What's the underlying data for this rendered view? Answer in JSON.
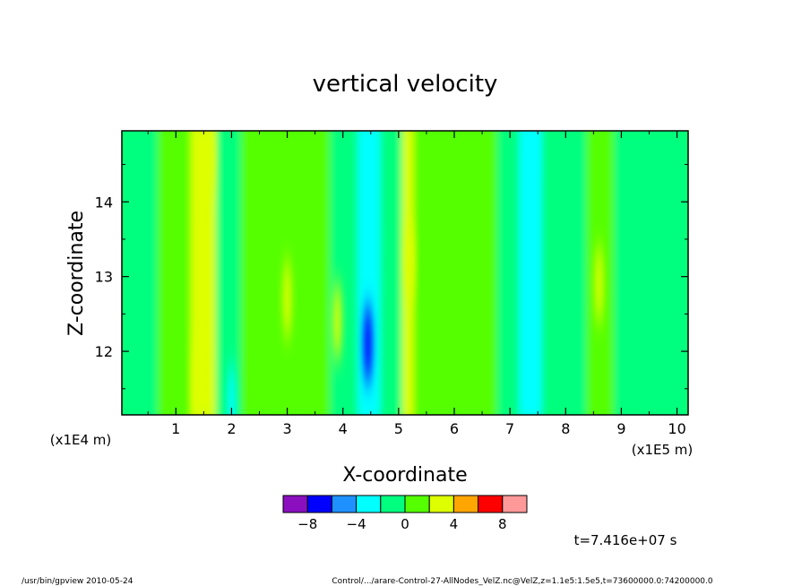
{
  "chart_data": {
    "type": "heatmap",
    "title": "vertical velocity",
    "xlabel": "X-coordinate",
    "ylabel": "Z-coordinate",
    "x_unit_left": "(x1E4 m)",
    "x_unit_right": "(x1E5 m)",
    "x_ticks": [
      {
        "label": "1",
        "value": 1
      },
      {
        "label": "2",
        "value": 2
      },
      {
        "label": "3",
        "value": 3
      },
      {
        "label": "4",
        "value": 4
      },
      {
        "label": "5",
        "value": 5
      },
      {
        "label": "6",
        "value": 6
      },
      {
        "label": "7",
        "value": 7
      },
      {
        "label": "8",
        "value": 8
      },
      {
        "label": "9",
        "value": 9
      },
      {
        "label": "10",
        "value": 10
      }
    ],
    "y_ticks": [
      {
        "label": "12",
        "value": 12
      },
      {
        "label": "13",
        "value": 13
      },
      {
        "label": "14",
        "value": 14
      }
    ],
    "xlim": [
      0.03,
      10.2
    ],
    "ylim": [
      11.15,
      14.95
    ],
    "colorbar": {
      "colors": [
        "#8b0fbf",
        "#0000ff",
        "#1e90ff",
        "#00ffff",
        "#00ff7f",
        "#55ff00",
        "#ddff00",
        "#ffa500",
        "#ff0000",
        "#ff9999"
      ],
      "tick_labels": [
        "−8",
        "−4",
        "0",
        "4",
        "8"
      ]
    },
    "color_levels": {
      "bands": [
        {
          "x_start": 0.03,
          "x_end": 0.7,
          "level": "#00ff7f"
        },
        {
          "x_start": 0.7,
          "x_end": 1.3,
          "level": "#55ff00"
        },
        {
          "x_start": 1.3,
          "x_end": 1.75,
          "level": "#ddff00"
        },
        {
          "x_start": 1.75,
          "x_end": 2.2,
          "level": "#00ff7f"
        },
        {
          "x_start": 2.2,
          "x_end": 3.8,
          "level": "#55ff00"
        },
        {
          "x_start": 3.8,
          "x_end": 4.3,
          "level": "#00ff7f"
        },
        {
          "x_start": 4.3,
          "x_end": 4.7,
          "level": "#00ffff"
        },
        {
          "x_start": 4.7,
          "x_end": 5.1,
          "level": "#00ff7f"
        },
        {
          "x_start": 5.1,
          "x_end": 5.3,
          "level": "#ddff00"
        },
        {
          "x_start": 5.3,
          "x_end": 6.8,
          "level": "#55ff00"
        },
        {
          "x_start": 6.8,
          "x_end": 7.2,
          "level": "#00ff7f"
        },
        {
          "x_start": 7.2,
          "x_end": 7.6,
          "level": "#00ffff"
        },
        {
          "x_start": 7.6,
          "x_end": 8.4,
          "level": "#00ff7f"
        },
        {
          "x_start": 8.4,
          "x_end": 8.9,
          "level": "#55ff00"
        },
        {
          "x_start": 8.9,
          "x_end": 10.2,
          "level": "#00ff7f"
        }
      ],
      "spots": [
        {
          "x": 1.6,
          "y": 14.6,
          "level": "#ddff00"
        },
        {
          "x": 1.4,
          "y": 11.6,
          "level": "#ddff00"
        },
        {
          "x": 4.45,
          "y": 12.1,
          "level": "#0000ff"
        },
        {
          "x": 3.9,
          "y": 12.4,
          "level": "#ddff00"
        },
        {
          "x": 5.2,
          "y": 13.2,
          "level": "#ddff00"
        },
        {
          "x": 8.6,
          "y": 12.9,
          "level": "#ddff00"
        },
        {
          "x": 7.4,
          "y": 14.8,
          "level": "#00ffff"
        },
        {
          "x": 2.0,
          "y": 11.3,
          "level": "#00ffff"
        },
        {
          "x": 3.0,
          "y": 12.7,
          "level": "#ddff00"
        }
      ]
    }
  },
  "time_label": "t=7.416e+07 s",
  "footer": {
    "left": "/usr/bin/gpview   2010-05-24",
    "right": "Control/.../arare-Control-27-AllNodes_VelZ.nc@VelZ,z=1.1e5:1.5e5,t=73600000.0:74200000.0"
  }
}
